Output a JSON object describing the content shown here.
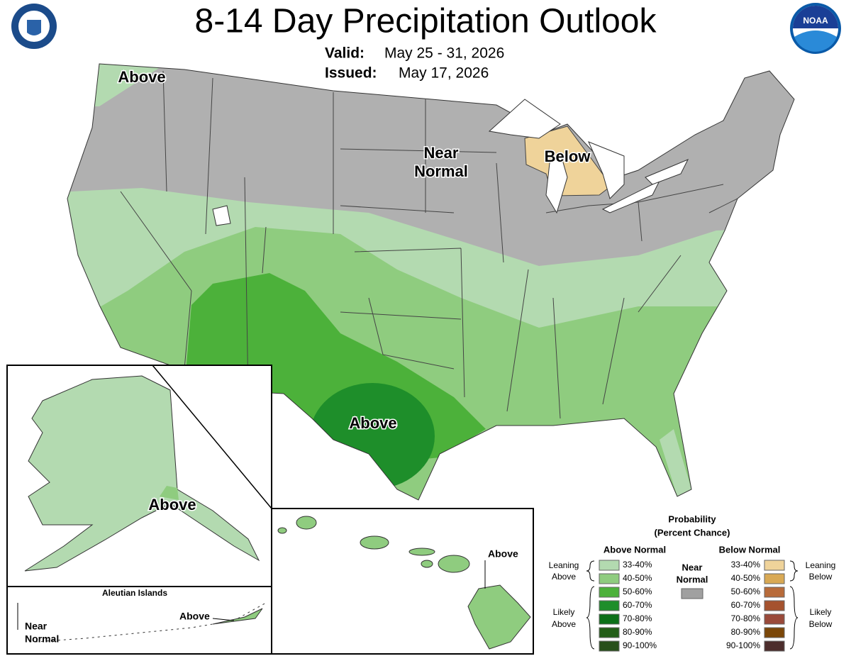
{
  "header": {
    "title": "8-14 Day Precipitation Outlook",
    "valid_label": "Valid:",
    "valid": "May 25 - 31, 2026",
    "issued_label": "Issued:",
    "issued": "May 17, 2026"
  },
  "logos": {
    "noaa": "NOAA"
  },
  "map_labels": {
    "conus_northwest": "Above",
    "conus_near_normal": [
      "Near",
      "Normal"
    ],
    "conus_great_lakes": "Below",
    "conus_south": "Above",
    "alaska": "Above",
    "aleutian_title": "Aleutian Islands",
    "aleutian_near_normal": [
      "Near",
      "Normal"
    ],
    "aleutian_above": "Above",
    "hawaii": "Above"
  },
  "legend": {
    "title": "Probability",
    "subtitle": "(Percent Chance)",
    "near_normal": {
      "label": [
        "Near",
        "Normal"
      ],
      "color": "#a0a0a0"
    },
    "above": {
      "heading": "Above Normal",
      "groups": [
        [
          "Leaning",
          "Above"
        ],
        [
          "Likely",
          "Above"
        ]
      ],
      "items": [
        {
          "label": "33-40%",
          "color": "#b3dab0"
        },
        {
          "label": "40-50%",
          "color": "#8fcc7f"
        },
        {
          "label": "50-60%",
          "color": "#4cb13a"
        },
        {
          "label": "60-70%",
          "color": "#1e8e2a"
        },
        {
          "label": "70-80%",
          "color": "#0c7018"
        },
        {
          "label": "80-90%",
          "color": "#235e17"
        },
        {
          "label": "90-100%",
          "color": "#28501a"
        }
      ]
    },
    "below": {
      "heading": "Below Normal",
      "groups": [
        [
          "Leaning",
          "Below"
        ],
        [
          "Likely",
          "Below"
        ]
      ],
      "items": [
        {
          "label": "33-40%",
          "color": "#efd39a"
        },
        {
          "label": "40-50%",
          "color": "#d9a954"
        },
        {
          "label": "50-60%",
          "color": "#b86b3a"
        },
        {
          "label": "60-70%",
          "color": "#a5522e"
        },
        {
          "label": "70-80%",
          "color": "#9a4a3a"
        },
        {
          "label": "80-90%",
          "color": "#7b4708"
        },
        {
          "label": "90-100%",
          "color": "#4c2d2c"
        }
      ]
    }
  }
}
